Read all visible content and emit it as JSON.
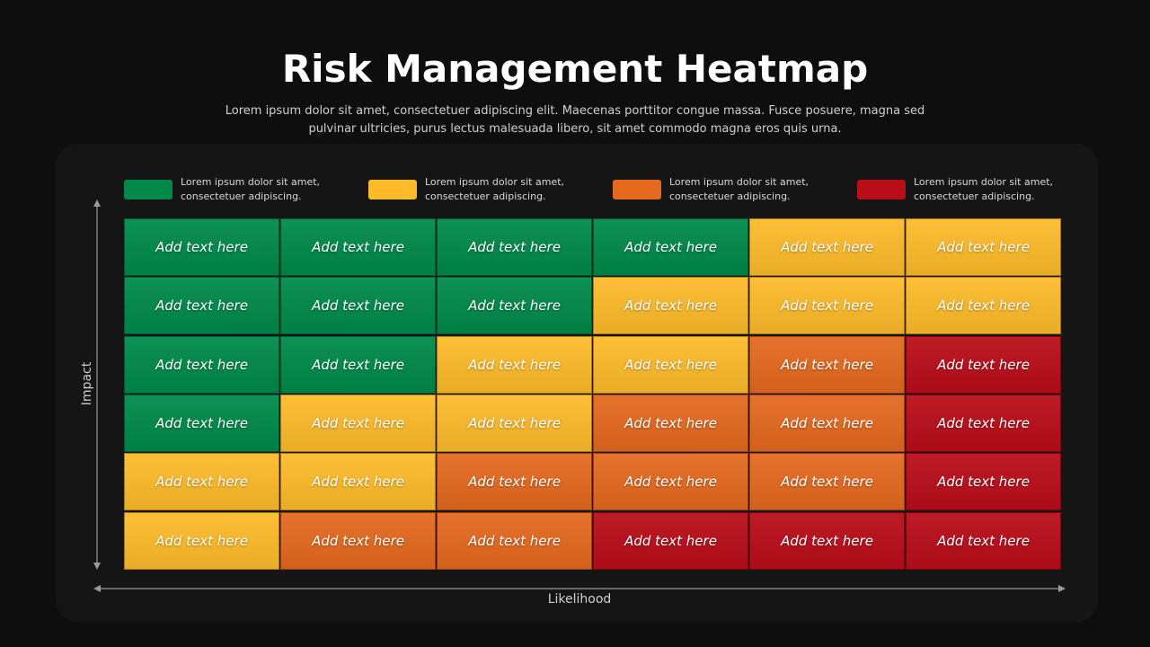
{
  "title": "Risk Management Heatmap",
  "subtitle": "Lorem ipsum dolor sit amet, consectetuer adipiscing elit. Maecenas porttitor congue massa. Fusce posuere, magna sed pulvinar ultricies, purus lectus malesuada libero, sit amet commodo magna eros quis urna.",
  "legend": [
    {
      "color": "#00894a",
      "text": "Lorem ipsum dolor sit amet, consectetuer adipiscing."
    },
    {
      "color": "#fdbb2a",
      "text": "Lorem ipsum dolor sit amet, consectetuer adipiscing."
    },
    {
      "color": "#e4691f",
      "text": "Lorem ipsum dolor sit amet, consectetuer adipiscing."
    },
    {
      "color": "#b90d19",
      "text": "Lorem ipsum dolor sit amet, consectetuer adipiscing."
    }
  ],
  "axes": {
    "y_label": "Impact",
    "x_label": "Likelihood"
  },
  "grid": {
    "rows": [
      {
        "cells": [
          {
            "text": "Add text here",
            "color": "#00894a"
          },
          {
            "text": "Add text here",
            "color": "#00894a"
          },
          {
            "text": "Add text here",
            "color": "#00894a"
          },
          {
            "text": "Add text here",
            "color": "#00894a"
          },
          {
            "text": "Add text here",
            "color": "#fdbb2a"
          },
          {
            "text": "Add text here",
            "color": "#fdbb2a"
          }
        ]
      },
      {
        "cells": [
          {
            "text": "Add text here",
            "color": "#00894a"
          },
          {
            "text": "Add text here",
            "color": "#00894a"
          },
          {
            "text": "Add text here",
            "color": "#00894a"
          },
          {
            "text": "Add text here",
            "color": "#fdbb2a"
          },
          {
            "text": "Add text here",
            "color": "#fdbb2a"
          },
          {
            "text": "Add text here",
            "color": "#fdbb2a"
          }
        ]
      },
      {
        "cells": [
          {
            "text": "Add text here",
            "color": "#00894a"
          },
          {
            "text": "Add text here",
            "color": "#00894a"
          },
          {
            "text": "Add text here",
            "color": "#fdbb2a"
          },
          {
            "text": "Add text here",
            "color": "#fdbb2a"
          },
          {
            "text": "Add text here",
            "color": "#e4691f"
          },
          {
            "text": "Add text here",
            "color": "#b90d19"
          }
        ]
      },
      {
        "cells": [
          {
            "text": "Add text here",
            "color": "#00894a"
          },
          {
            "text": "Add text here",
            "color": "#fdbb2a"
          },
          {
            "text": "Add text here",
            "color": "#fdbb2a"
          },
          {
            "text": "Add text here",
            "color": "#e4691f"
          },
          {
            "text": "Add text here",
            "color": "#e4691f"
          },
          {
            "text": "Add text here",
            "color": "#b90d19"
          }
        ]
      },
      {
        "cells": [
          {
            "text": "Add text here",
            "color": "#fdbb2a"
          },
          {
            "text": "Add text here",
            "color": "#fdbb2a"
          },
          {
            "text": "Add text here",
            "color": "#e4691f"
          },
          {
            "text": "Add text here",
            "color": "#e4691f"
          },
          {
            "text": "Add text here",
            "color": "#e4691f"
          },
          {
            "text": "Add text here",
            "color": "#b90d19"
          }
        ]
      },
      {
        "cells": [
          {
            "text": "Add text here",
            "color": "#fdbb2a"
          },
          {
            "text": "Add text here",
            "color": "#e4691f"
          },
          {
            "text": "Add text here",
            "color": "#e4691f"
          },
          {
            "text": "Add text here",
            "color": "#b90d19"
          },
          {
            "text": "Add text here",
            "color": "#b90d19"
          },
          {
            "text": "Add text here",
            "color": "#b90d19"
          }
        ]
      }
    ]
  }
}
